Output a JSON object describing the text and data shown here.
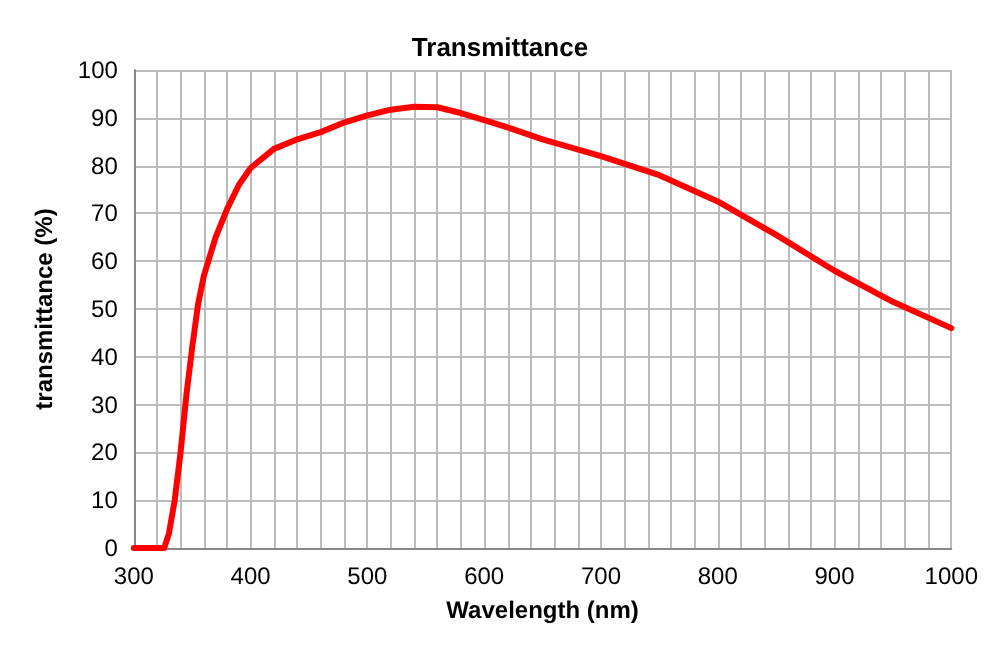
{
  "chart_data": {
    "type": "line",
    "title": "Transmittance",
    "xlabel": "Wavelength (nm)",
    "ylabel": "transmittance (%)",
    "x": [
      300,
      320,
      326,
      330,
      335,
      340,
      345,
      350,
      355,
      360,
      370,
      380,
      390,
      400,
      420,
      440,
      460,
      480,
      500,
      520,
      540,
      560,
      580,
      600,
      620,
      650,
      700,
      750,
      800,
      850,
      900,
      950,
      1000
    ],
    "series": [
      {
        "color": "#ff0000",
        "values": [
          0,
          0,
          0,
          3,
          10,
          20,
          32,
          42,
          51,
          57,
          65,
          71,
          76,
          79.5,
          83.5,
          85.5,
          87,
          89,
          90.5,
          91.7,
          92.3,
          92.2,
          91,
          89.5,
          88,
          85.5,
          82,
          78,
          72.5,
          65.5,
          58,
          51.5,
          46
        ]
      }
    ],
    "xlim": [
      300,
      1000
    ],
    "ylim": [
      0,
      100
    ],
    "xticks": [
      300,
      {
        "value": 320,
        "label": null
      },
      {
        "value": 340,
        "label": null
      },
      {
        "value": 360,
        "label": null
      },
      {
        "value": 380,
        "label": null
      },
      400,
      {
        "value": 420,
        "label": null
      },
      {
        "value": 440,
        "label": null
      },
      {
        "value": 460,
        "label": null
      },
      {
        "value": 480,
        "label": null
      },
      500,
      {
        "value": 520,
        "label": null
      },
      {
        "value": 540,
        "label": null
      },
      {
        "value": 560,
        "label": null
      },
      {
        "value": 580,
        "label": null
      },
      600,
      {
        "value": 620,
        "label": null
      },
      {
        "value": 640,
        "label": null
      },
      {
        "value": 660,
        "label": null
      },
      {
        "value": 680,
        "label": null
      },
      700,
      {
        "value": 720,
        "label": null
      },
      {
        "value": 740,
        "label": null
      },
      {
        "value": 760,
        "label": null
      },
      {
        "value": 780,
        "label": null
      },
      800,
      {
        "value": 820,
        "label": null
      },
      {
        "value": 840,
        "label": null
      },
      {
        "value": 860,
        "label": null
      },
      {
        "value": 880,
        "label": null
      },
      900,
      {
        "value": 920,
        "label": null
      },
      {
        "value": 940,
        "label": null
      },
      {
        "value": 960,
        "label": null
      },
      {
        "value": 980,
        "label": null
      },
      1000
    ],
    "yticks": [
      0,
      10,
      20,
      30,
      40,
      50,
      60,
      70,
      80,
      90,
      100
    ],
    "grid": true,
    "marker": "none",
    "line_style": "solid"
  }
}
